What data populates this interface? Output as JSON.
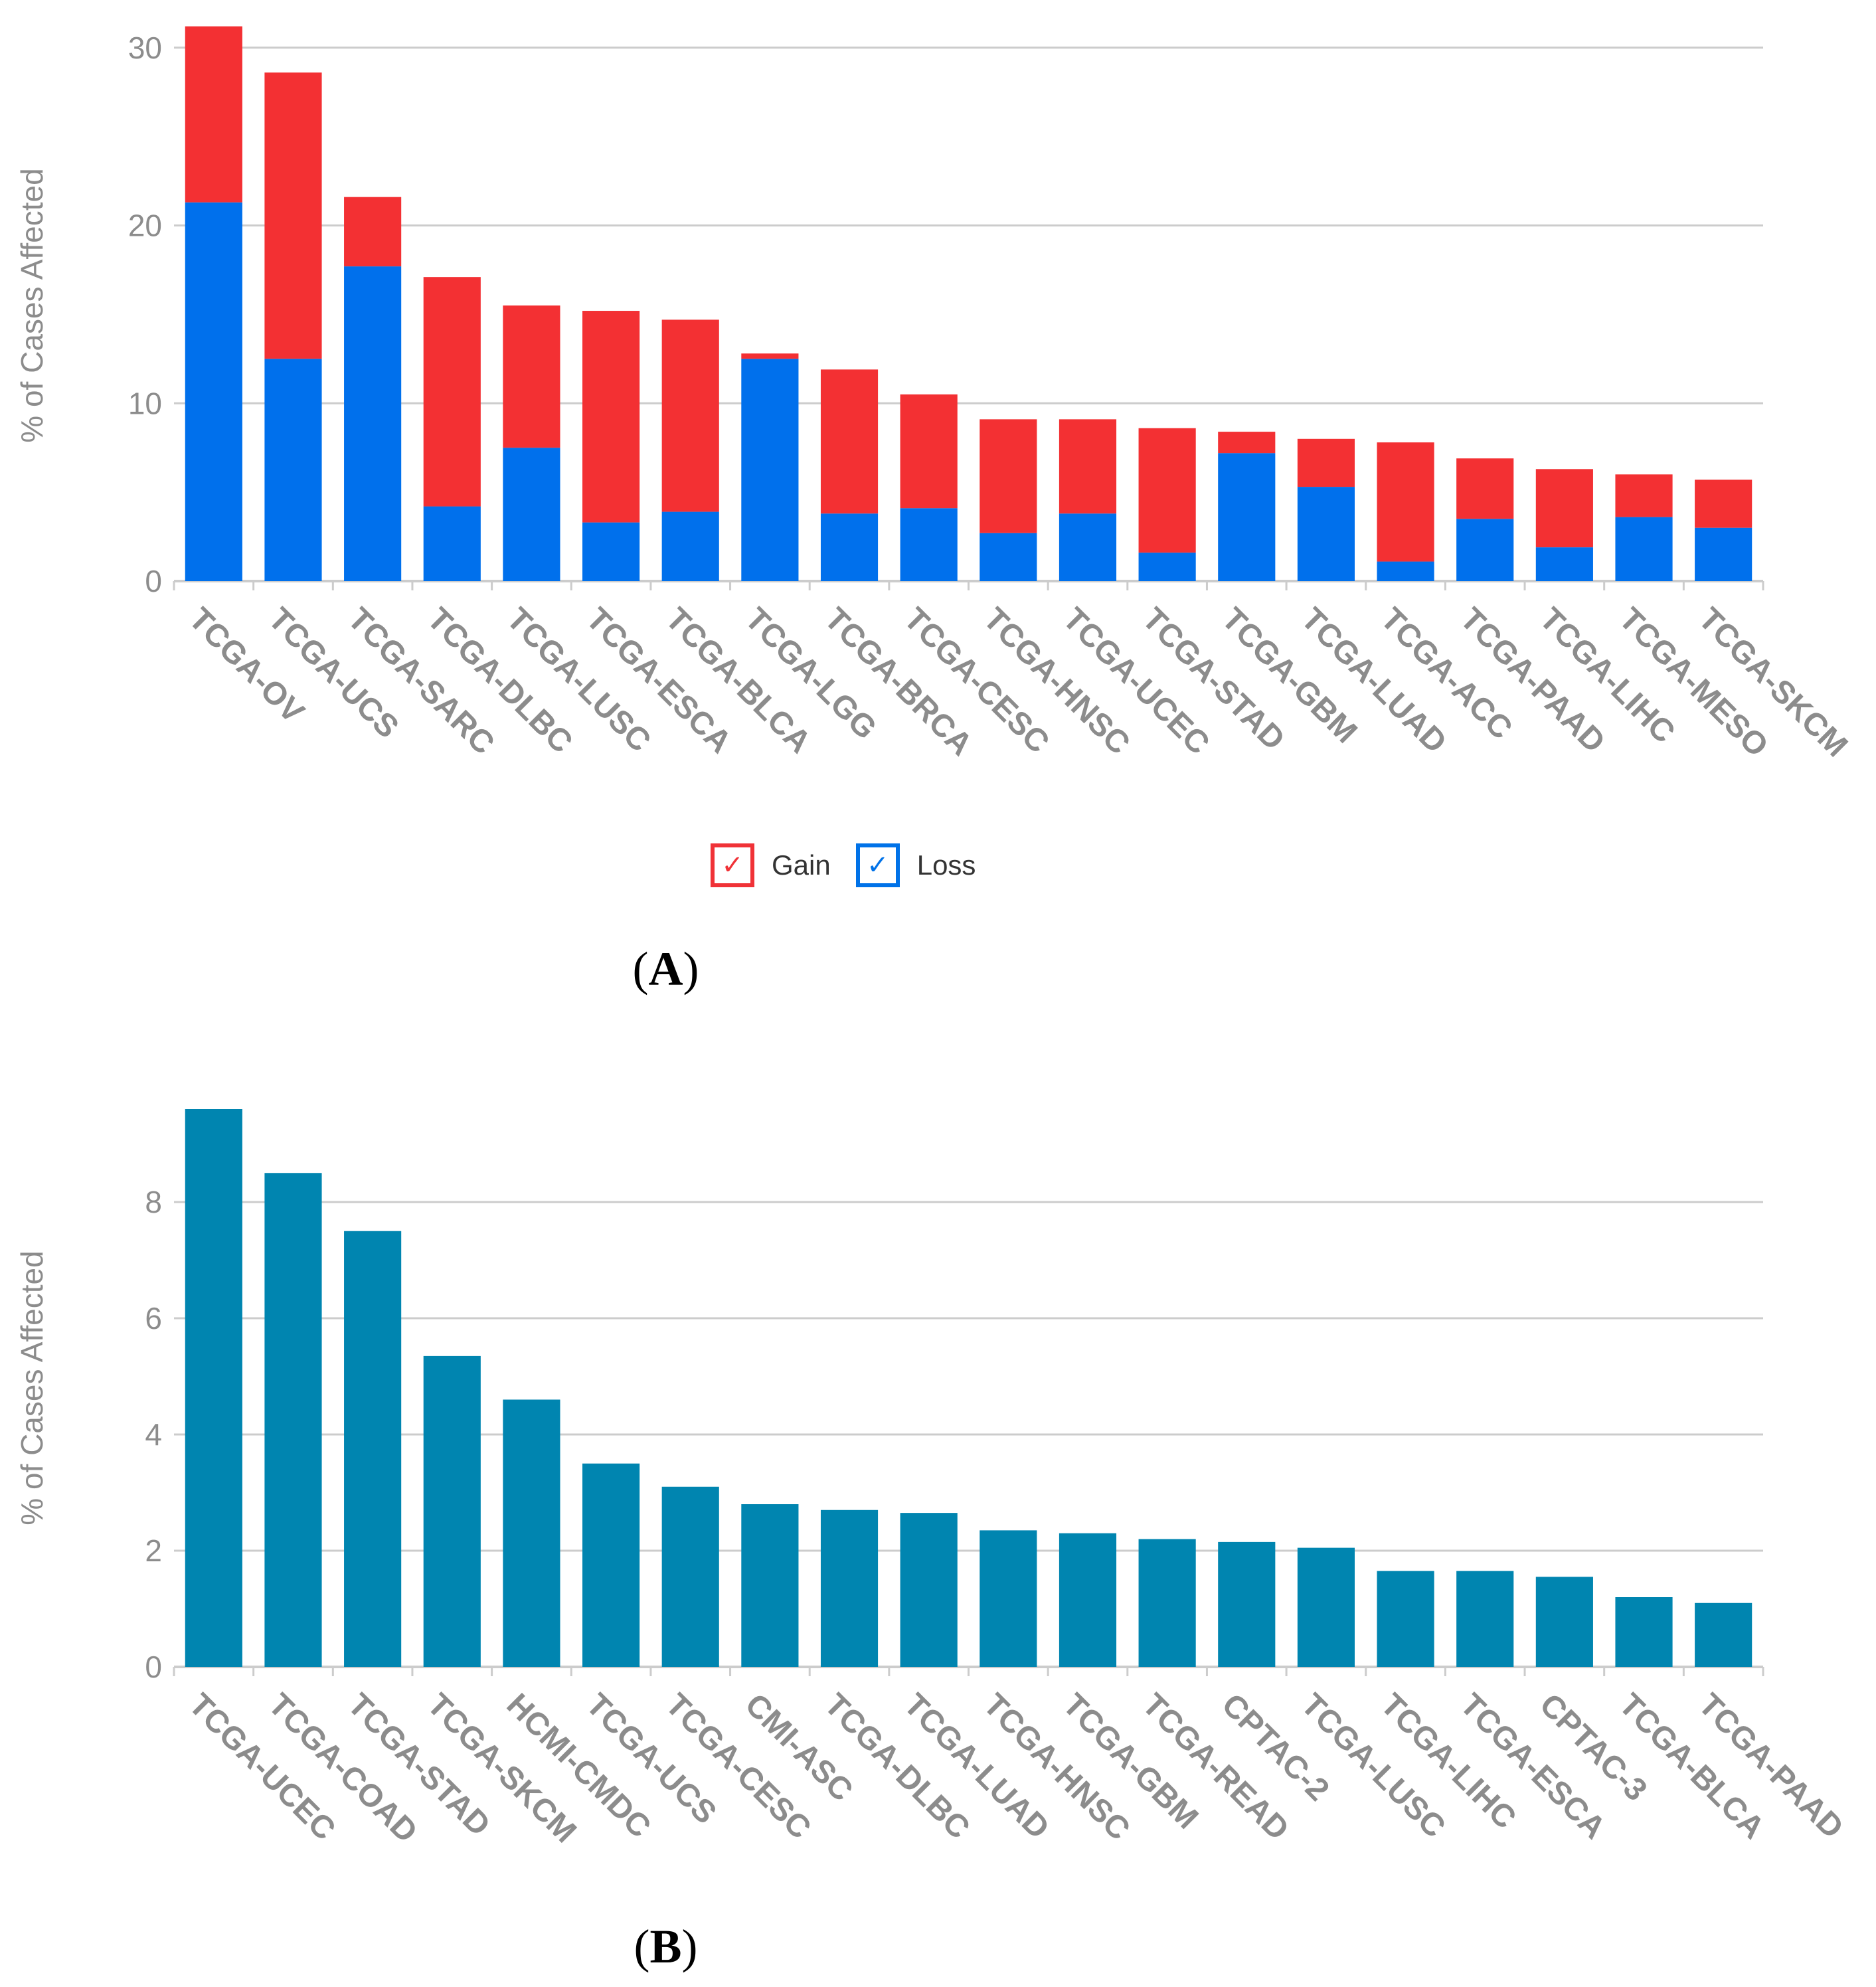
{
  "colors": {
    "gain": "#f33033",
    "loss": "#0070ec",
    "single": "#0085b0",
    "grid": "#cccccc",
    "axis_text": "#8c8c8c"
  },
  "panel_a": {
    "label_letter": "A"
  },
  "panel_b": {
    "label_letter": "B"
  },
  "legend": {
    "gain_label": "Gain",
    "loss_label": "Loss",
    "check_glyph": "✓"
  },
  "chart_data": [
    {
      "type": "bar",
      "stacked": true,
      "title": "",
      "xlabel": "",
      "ylabel": "% of Cases Affected",
      "ylim": [
        0,
        31
      ],
      "yticks": [
        0,
        10,
        20,
        30
      ],
      "grid": true,
      "legend_position": "bottom-center",
      "categories": [
        "TCGA-OV",
        "TCGA-UCS",
        "TCGA-SARC",
        "TCGA-DLBC",
        "TCGA-LUSC",
        "TCGA-ESCA",
        "TCGA-BLCA",
        "TCGA-LGG",
        "TCGA-BRCA",
        "TCGA-CESC",
        "TCGA-HNSC",
        "TCGA-UCEC",
        "TCGA-STAD",
        "TCGA-GBM",
        "TCGA-LUAD",
        "TCGA-ACC",
        "TCGA-PAAD",
        "TCGA-LIHC",
        "TCGA-MESO",
        "TCGA-SKCM"
      ],
      "series": [
        {
          "name": "Loss",
          "values": [
            21.3,
            12.5,
            17.7,
            4.2,
            7.5,
            3.3,
            3.9,
            12.5,
            3.8,
            4.1,
            2.7,
            3.8,
            1.6,
            7.2,
            5.3,
            1.1,
            3.5,
            1.9,
            3.6,
            3.0
          ]
        },
        {
          "name": "Gain",
          "values": [
            9.9,
            16.1,
            3.9,
            12.9,
            8.0,
            11.9,
            10.8,
            0.3,
            8.1,
            6.4,
            6.4,
            5.3,
            7.0,
            1.2,
            2.7,
            6.7,
            3.4,
            4.4,
            2.4,
            2.7
          ]
        }
      ]
    },
    {
      "type": "bar",
      "stacked": false,
      "title": "",
      "xlabel": "",
      "ylabel": "% of Cases Affected",
      "ylim": [
        0,
        9.6
      ],
      "yticks": [
        0,
        2,
        4,
        6,
        8
      ],
      "grid": true,
      "categories": [
        "TCGA-UCEC",
        "TCGA-COAD",
        "TCGA-STAD",
        "TCGA-SKCM",
        "HCMI-CMDC",
        "TCGA-UCS",
        "TCGA-CESC",
        "CMI-ASC",
        "TCGA-DLBC",
        "TCGA-LUAD",
        "TCGA-HNSC",
        "TCGA-GBM",
        "TCGA-READ",
        "CPTAC-2",
        "TCGA-LUSC",
        "TCGA-LIHC",
        "TCGA-ESCA",
        "CPTAC-3",
        "TCGA-BLCA",
        "TCGA-PAAD"
      ],
      "series": [
        {
          "name": "% of Cases Affected",
          "values": [
            9.6,
            8.5,
            7.5,
            5.35,
            4.6,
            3.5,
            3.1,
            2.8,
            2.7,
            2.65,
            2.35,
            2.3,
            2.2,
            2.15,
            2.05,
            1.65,
            1.65,
            1.55,
            1.2,
            1.1
          ]
        }
      ]
    }
  ]
}
